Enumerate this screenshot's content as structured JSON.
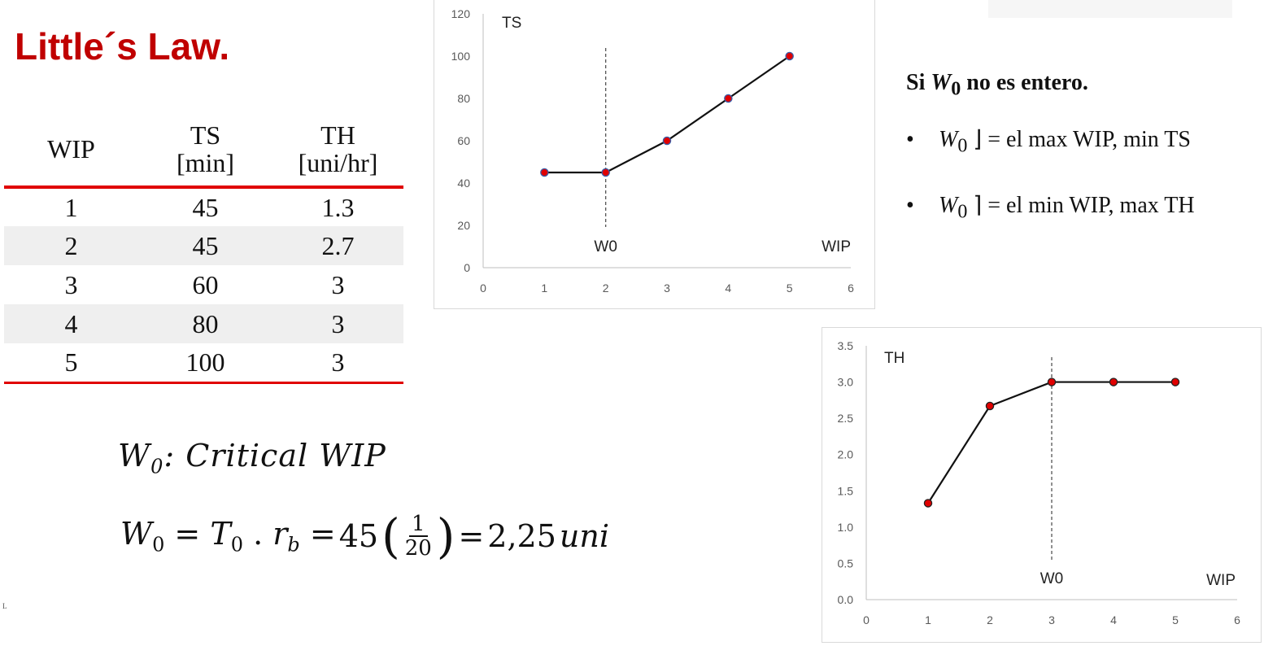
{
  "title": "Little´s Law.",
  "table": {
    "headers": [
      {
        "label": "WIP",
        "unit": ""
      },
      {
        "label": "TS",
        "unit": "[min]"
      },
      {
        "label": "TH",
        "unit": "[uni/hr]"
      }
    ],
    "rows": [
      [
        "1",
        "45",
        "1.3"
      ],
      [
        "2",
        "45",
        "2.7"
      ],
      [
        "3",
        "60",
        "3"
      ],
      [
        "4",
        "80",
        "3"
      ],
      [
        "5",
        "100",
        "3"
      ]
    ]
  },
  "formulas": {
    "critical_label": "Critical WIP",
    "w0_value": "45",
    "frac_num": "1",
    "frac_den": "20",
    "result": "2,25",
    "result_unit": "uni"
  },
  "notes": {
    "heading_pre": "Si",
    "heading_post": "no es entero.",
    "bullet1": "= el max WIP, min TS",
    "bullet2": "= el min WIP, max TH"
  },
  "footnote": "L",
  "colors": {
    "accent": "#c00000",
    "line": "#e00000",
    "marker": "#e00000"
  },
  "chart_data": [
    {
      "type": "line",
      "title": "TS",
      "xlabel": "WIP",
      "ylabel": "",
      "x": [
        1,
        2,
        3,
        4,
        5
      ],
      "series": [
        {
          "values": [
            45,
            45,
            60,
            80,
            100
          ]
        }
      ],
      "xlim": [
        0,
        6
      ],
      "ylim": [
        0,
        120
      ],
      "xticks": [
        0,
        1,
        2,
        3,
        4,
        5,
        6
      ],
      "yticks": [
        0,
        20,
        40,
        60,
        80,
        100,
        120
      ],
      "ytick_labels": [
        "0",
        "20",
        "40",
        "60",
        "80",
        "100",
        "120"
      ],
      "annotation": {
        "label": "W0",
        "x": 2
      },
      "grid": false
    },
    {
      "type": "line",
      "title": "TH",
      "xlabel": "WIP",
      "ylabel": "",
      "x": [
        1,
        2,
        3,
        4,
        5
      ],
      "series": [
        {
          "values": [
            1.33,
            2.67,
            3.0,
            3.0,
            3.0
          ]
        }
      ],
      "xlim": [
        0,
        6
      ],
      "ylim": [
        0,
        3.5
      ],
      "xticks": [
        0,
        1,
        2,
        3,
        4,
        5,
        6
      ],
      "yticks": [
        0,
        0.5,
        1,
        1.5,
        2,
        2.5,
        3,
        3.5
      ],
      "ytick_labels": [
        "0.0",
        "0.5",
        "1.0",
        "1.5",
        "2.0",
        "2.5",
        "3.0",
        "3.5"
      ],
      "annotation": {
        "label": "W0",
        "x": 3
      },
      "grid": false
    }
  ]
}
